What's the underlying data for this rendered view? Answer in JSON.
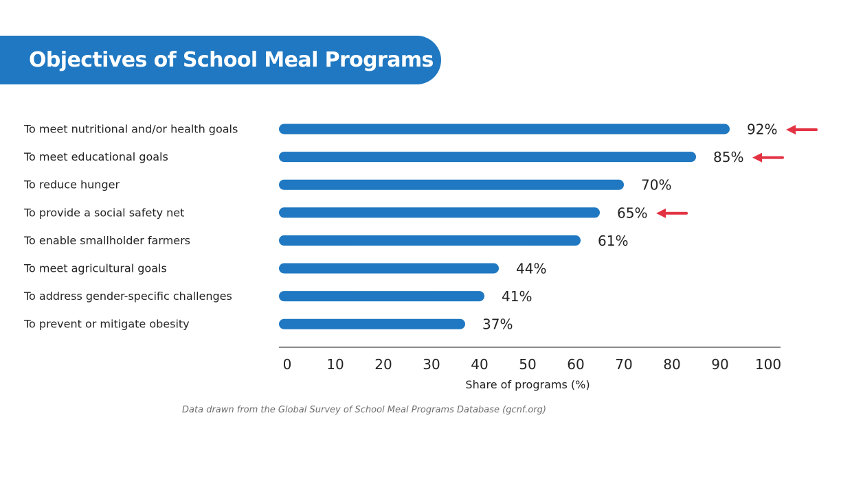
{
  "header": {
    "title": "Objectives of School Meal Programs"
  },
  "source_note": "Data drawn from the Global Survey of School Meal Programs Database (gcnf.org)",
  "colors": {
    "bar": "#1f78c1",
    "arrow": "#e33343",
    "axis": "#8a8a8a",
    "banner": "#1f78c1"
  },
  "chart_data": {
    "type": "bar",
    "orientation": "horizontal",
    "categories": [
      "To meet nutritional and/or health goals",
      "To meet educational goals",
      "To reduce hunger",
      "To provide a social safety net",
      "To enable smallholder farmers",
      "To meet agricultural goals",
      "To address gender-specific challenges",
      "To prevent or mitigate obesity"
    ],
    "values": [
      92,
      85,
      70,
      65,
      61,
      44,
      41,
      37
    ],
    "value_labels": [
      "92%",
      "85%",
      "70%",
      "65%",
      "61%",
      "44%",
      "41%",
      "37%"
    ],
    "highlighted": [
      true,
      true,
      false,
      true,
      false,
      false,
      false,
      false
    ],
    "xlabel": "Share of programs (%)",
    "xlim": [
      0,
      100
    ],
    "xticks": [
      0,
      10,
      20,
      30,
      40,
      50,
      60,
      70,
      80,
      90,
      100
    ],
    "grid": false,
    "legend": "none"
  }
}
